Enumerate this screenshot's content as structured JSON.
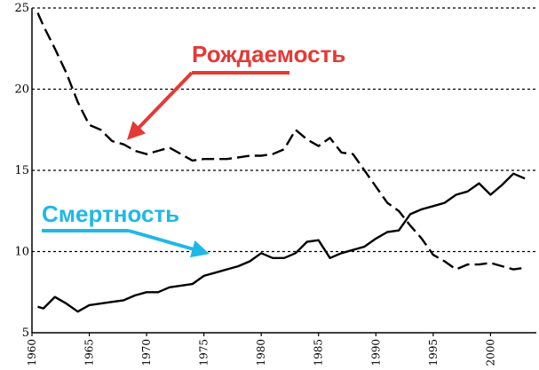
{
  "chart_data": {
    "type": "line",
    "title": "",
    "xlabel": "",
    "ylabel": "",
    "xlim": [
      1960,
      2004
    ],
    "ylim": [
      5,
      25
    ],
    "yticks": [
      "5",
      "10",
      "15",
      "20",
      "25"
    ],
    "xticks": [
      "1960",
      "1965",
      "1970",
      "1975",
      "1980",
      "1985",
      "1990",
      "1995",
      "2000"
    ],
    "grid": "horizontal dotted",
    "series": [
      {
        "name": "Рождаемость",
        "style": "dashed",
        "x": [
          1960.5,
          1961,
          1962,
          1963,
          1964,
          1965,
          1966,
          1967,
          1968,
          1969,
          1970,
          1971,
          1972,
          1973,
          1974,
          1975,
          1976,
          1977,
          1978,
          1979,
          1980,
          1981,
          1982,
          1983,
          1984,
          1985,
          1986,
          1987,
          1988,
          1989,
          1990,
          1991,
          1992,
          1993,
          1994,
          1995,
          1996,
          1997,
          1998,
          1999,
          2000,
          2001,
          2002,
          2003
        ],
        "y": [
          24.7,
          23.9,
          22.5,
          21.0,
          19.2,
          17.8,
          17.5,
          16.8,
          16.6,
          16.2,
          16.0,
          16.2,
          16.4,
          16.0,
          15.6,
          15.7,
          15.7,
          15.7,
          15.8,
          15.9,
          15.9,
          16.0,
          16.3,
          17.5,
          16.9,
          16.5,
          17.0,
          16.1,
          16.0,
          15.0,
          14.0,
          13.0,
          12.5,
          11.6,
          10.8,
          9.8,
          9.4,
          8.9,
          9.2,
          9.2,
          9.3,
          9.1,
          8.9,
          9.0
        ]
      },
      {
        "name": "Смертность",
        "style": "solid",
        "x": [
          1960.5,
          1961,
          1962,
          1963,
          1964,
          1965,
          1966,
          1967,
          1968,
          1969,
          1970,
          1971,
          1972,
          1973,
          1974,
          1975,
          1976,
          1977,
          1978,
          1979,
          1980,
          1981,
          1982,
          1983,
          1984,
          1985,
          1986,
          1987,
          1988,
          1989,
          1990,
          1991,
          1992,
          1993,
          1994,
          1995,
          1996,
          1997,
          1998,
          1999,
          2000,
          2001,
          2002,
          2003
        ],
        "y": [
          6.6,
          6.5,
          7.2,
          6.8,
          6.3,
          6.7,
          6.8,
          6.9,
          7.0,
          7.3,
          7.5,
          7.5,
          7.8,
          7.9,
          8.0,
          8.5,
          8.7,
          8.9,
          9.1,
          9.4,
          9.9,
          9.6,
          9.6,
          9.9,
          10.6,
          10.7,
          9.6,
          9.9,
          10.1,
          10.3,
          10.8,
          11.2,
          11.3,
          12.3,
          12.6,
          12.8,
          13.0,
          13.5,
          13.7,
          14.2,
          13.5,
          14.1,
          14.8,
          14.5
        ]
      }
    ],
    "annotations": [
      {
        "text": "Рождаемость",
        "color": "#e53935",
        "points_to": [
          1968.5,
          16.7
        ]
      },
      {
        "text": "Смертность",
        "color": "#1fb8e6",
        "points_to": [
          1975.5,
          9.7
        ]
      }
    ]
  }
}
